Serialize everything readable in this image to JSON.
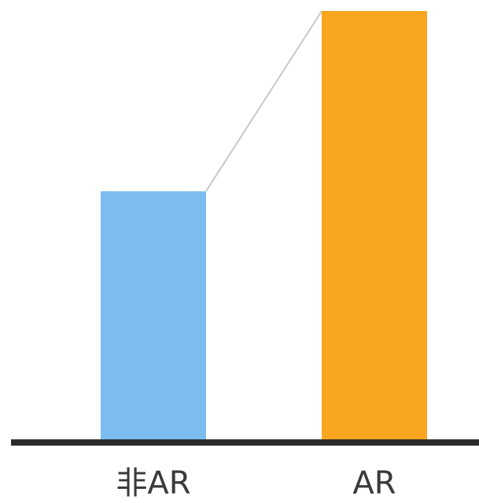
{
  "chart_data": {
    "type": "bar",
    "categories": [
      "非AR",
      "AR"
    ],
    "values": [
      58,
      100
    ],
    "ylim": [
      0,
      100
    ],
    "grid": false,
    "colors": {
      "非AR": "#7cbdf0",
      "AR": "#f8a51f",
      "axis": "#2b2b2b",
      "connector": "#c8c8c8"
    },
    "connector_line": true
  }
}
